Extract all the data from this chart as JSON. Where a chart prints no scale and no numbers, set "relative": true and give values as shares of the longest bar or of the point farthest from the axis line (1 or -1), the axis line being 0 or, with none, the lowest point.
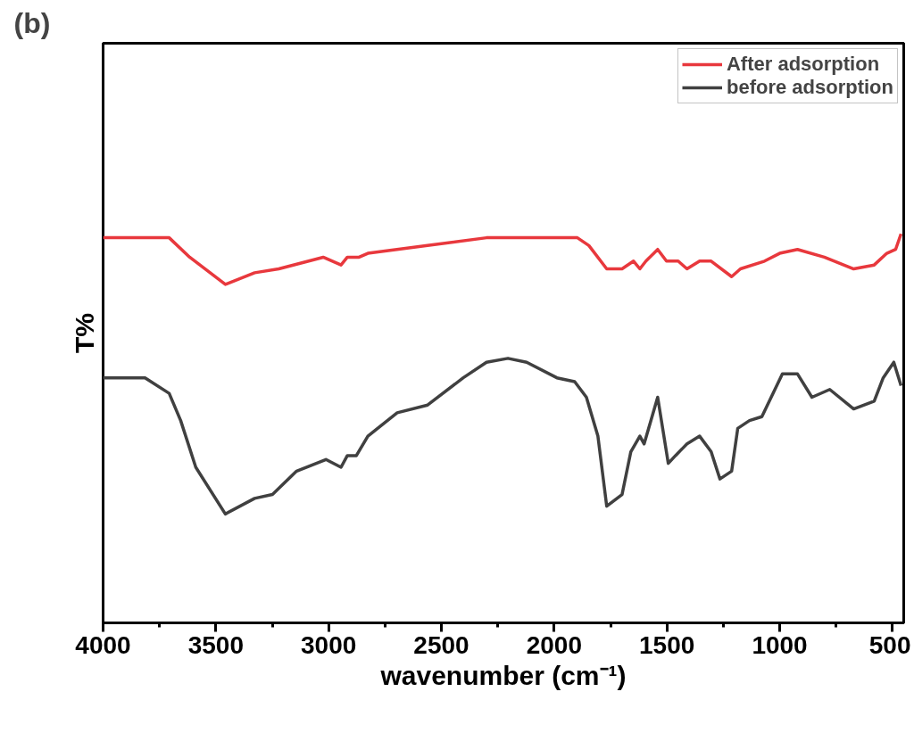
{
  "chart_data": {
    "type": "line",
    "relative": true,
    "annotations": [
      "(b)"
    ],
    "xlabel": "wavenumber (cm⁻¹)",
    "ylabel": "T%",
    "xlim": [
      4000,
      450
    ],
    "xticks": [
      4000,
      3500,
      3000,
      2500,
      2000,
      1500,
      1000,
      500
    ],
    "grid": false,
    "legend": "top right",
    "marker": "none",
    "line_style": "solid",
    "series": [
      {
        "name": "After adsorption",
        "color": "#e8383d",
        "x": [
          4000,
          3707,
          3616,
          3458,
          3328,
          3221,
          3024,
          2945,
          2917,
          2865,
          2826,
          2561,
          2300,
          2193,
          1897,
          1846,
          1767,
          1699,
          1648,
          1620,
          1593,
          1541,
          1502,
          1450,
          1411,
          1355,
          1304,
          1213,
          1174,
          1067,
          1000,
          921,
          802,
          672,
          581,
          525,
          486,
          462
        ],
        "values": [
          0.99,
          0.99,
          0.94,
          0.87,
          0.9,
          0.91,
          0.94,
          0.92,
          0.94,
          0.94,
          0.95,
          0.97,
          0.99,
          0.99,
          0.99,
          0.97,
          0.91,
          0.91,
          0.93,
          0.91,
          0.93,
          0.96,
          0.93,
          0.93,
          0.91,
          0.93,
          0.93,
          0.89,
          0.91,
          0.93,
          0.95,
          0.96,
          0.94,
          0.91,
          0.92,
          0.95,
          0.96,
          1.0
        ]
      },
      {
        "name": "before adsorption",
        "color": "#404040",
        "x": [
          4000,
          3814,
          3707,
          3656,
          3589,
          3458,
          3328,
          3249,
          3142,
          3012,
          2945,
          2917,
          2877,
          2826,
          2696,
          2561,
          2403,
          2300,
          2205,
          2122,
          1988,
          1909,
          1857,
          1806,
          1767,
          1699,
          1660,
          1620,
          1601,
          1541,
          1494,
          1462,
          1411,
          1355,
          1304,
          1265,
          1213,
          1186,
          1134,
          1079,
          988,
          921,
          857,
          778,
          672,
          581,
          541,
          494,
          462
        ],
        "values": [
          0.63,
          0.63,
          0.59,
          0.52,
          0.4,
          0.28,
          0.32,
          0.33,
          0.39,
          0.42,
          0.4,
          0.43,
          0.43,
          0.48,
          0.54,
          0.56,
          0.63,
          0.67,
          0.68,
          0.67,
          0.63,
          0.62,
          0.58,
          0.48,
          0.3,
          0.33,
          0.44,
          0.48,
          0.46,
          0.58,
          0.41,
          0.43,
          0.46,
          0.48,
          0.44,
          0.37,
          0.39,
          0.5,
          0.52,
          0.53,
          0.64,
          0.64,
          0.58,
          0.6,
          0.55,
          0.57,
          0.63,
          0.67,
          0.61
        ]
      }
    ]
  }
}
